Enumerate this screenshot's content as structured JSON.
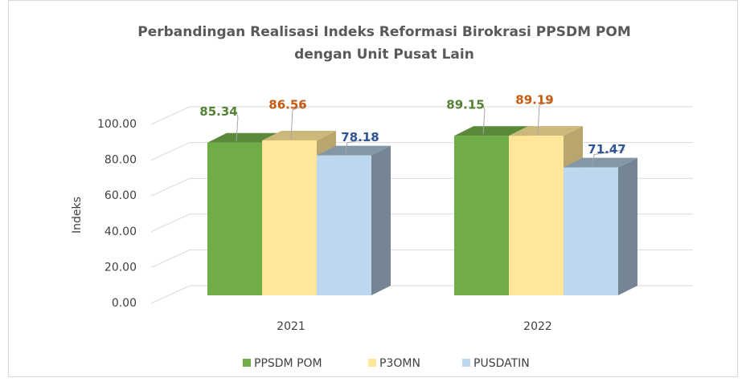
{
  "chart_data": {
    "type": "bar3d",
    "title": "Perbandingan Realisasi Indeks Reformasi Birokrasi PPSDM POM",
    "subtitle": "dengan Unit Pusat Lain",
    "y_label": "Indeks",
    "categories": [
      "2021",
      "2022"
    ],
    "series": [
      {
        "name": "PPSDM POM",
        "color": "#70ad47",
        "values": [
          85.34,
          89.15
        ]
      },
      {
        "name": "P3OMN",
        "color": "#ffe699",
        "values": [
          86.56,
          89.19
        ]
      },
      {
        "name": "PUSDATIN",
        "color": "#bdd7ee",
        "values": [
          78.18,
          71.47
        ]
      }
    ],
    "ylim": [
      0,
      100
    ],
    "yticks": [
      {
        "value": 0,
        "label": "0.00"
      },
      {
        "value": 20,
        "label": "20.00"
      },
      {
        "value": 40,
        "label": "40.00"
      },
      {
        "value": 60,
        "label": "60.00"
      },
      {
        "value": 80,
        "label": "80.00"
      },
      {
        "value": 100,
        "label": "100.00"
      }
    ],
    "grid": true,
    "legend": "bottom"
  }
}
